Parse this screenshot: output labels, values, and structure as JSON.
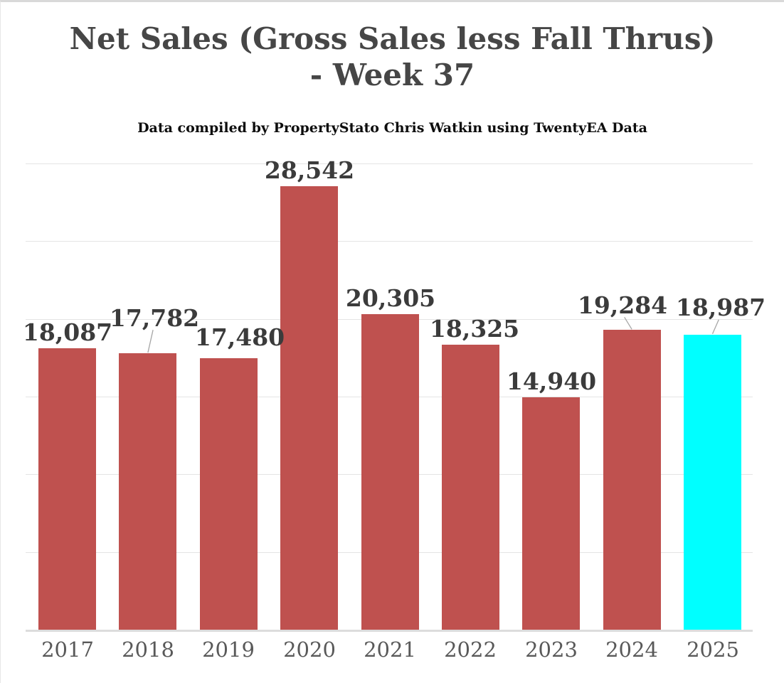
{
  "header": {
    "title_line1": "Net Sales (Gross Sales less Fall Thrus)",
    "title_line2": "- Week 37",
    "subtitle": "Data compiled by PropertyStato Chris Watkin using TwentyEA Data"
  },
  "chart_data": {
    "type": "bar",
    "title": "Net Sales (Gross Sales less Fall Thrus) - Week 37",
    "subtitle": "Data compiled by PropertyStato Chris Watkin using TwentyEA Data",
    "categories": [
      "2017",
      "2018",
      "2019",
      "2020",
      "2021",
      "2022",
      "2023",
      "2024",
      "2025"
    ],
    "values": [
      18087,
      17782,
      17480,
      28542,
      20305,
      18325,
      14940,
      19284,
      18987
    ],
    "value_labels": [
      "18,087",
      "17,782",
      "17,480",
      "28,542",
      "20,305",
      "18,325",
      "14,940",
      "19,284",
      "18,987"
    ],
    "xlabel": "",
    "ylabel": "",
    "ylim": [
      0,
      30000
    ],
    "gridline_interval": 5000,
    "grid": true,
    "legend": "none",
    "highlight_category": "2025",
    "colors": {
      "bar_default": "#bf514f",
      "bar_highlight": "#00ffff",
      "gridline": "#e4e4e4",
      "axis_line": "#dcdcdc",
      "title": "#464646",
      "subtitle": "#0d0d0d",
      "value_label": "#3b3b3b",
      "axis_label": "#595959",
      "leader_line": "#a6a6a6"
    },
    "label_layout": {
      "default_raise": 8,
      "raise": {
        "2018": 35,
        "2019": 14,
        "2024": 20,
        "2025": 23
      },
      "dx": {
        "2017": 0,
        "2018": 9,
        "2019": 16,
        "2020": 0,
        "2021": 1,
        "2022": 6,
        "2023": 0,
        "2024": -13,
        "2025": 11
      },
      "callout_categories": [
        "2018",
        "2024",
        "2025"
      ]
    }
  }
}
